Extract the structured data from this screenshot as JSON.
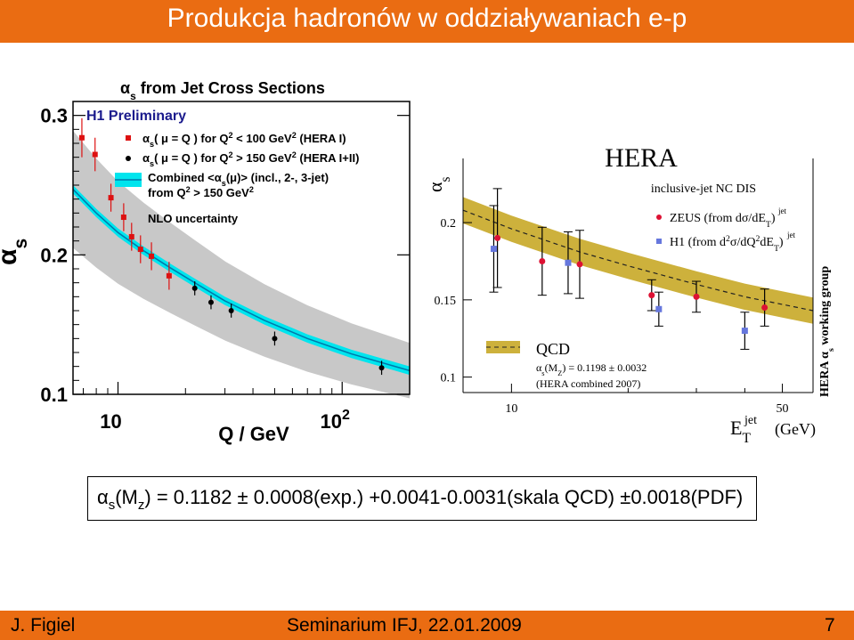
{
  "slide": {
    "title": "Produkcja hadronów w oddziaływaniach e-p",
    "footer_author": "J. Figiel",
    "footer_event": "Seminarium IFJ, 22.01.2009",
    "footer_page": "7"
  },
  "formula": {
    "alpha": "α",
    "sub_s": "s",
    "open": "(M",
    "sub_z": "z",
    "rest": ") = 0.1182 ± 0.0008(exp.)  +0.0041-0.0031(skala QCD) ±0.0018(PDF)"
  },
  "chart_data": [
    {
      "type": "scatter",
      "title": "α s from Jet Cross Sections",
      "title_alpha": "α",
      "title_sub": "s",
      "title_rest": "from Jet Cross Sections",
      "collaboration": "H1 Preliminary",
      "xlabel": "Q / GeV",
      "ylabel_alpha": "α",
      "ylabel_sub": "s",
      "xscale": "log",
      "xlim": [
        6.3,
        200
      ],
      "ylim": [
        0.1,
        0.31
      ],
      "xticks": [
        {
          "label": "10",
          "value": 10
        },
        {
          "label": "10",
          "sup": "2",
          "value": 100
        }
      ],
      "yticks": [
        {
          "label": "0.1",
          "value": 0.1
        },
        {
          "label": "0.2",
          "value": 0.2
        },
        {
          "label": "0.3",
          "value": 0.3
        }
      ],
      "legend": [
        {
          "marker": "red-square",
          "parts": [
            "α",
            "s",
            "( μ = Q ) for Q",
            "2",
            " < 100 GeV",
            "2",
            " (HERA I)"
          ]
        },
        {
          "marker": "black-dot",
          "parts": [
            "α",
            "s",
            "( μ = Q ) for Q",
            "2",
            " > 150 GeV",
            "2",
            " (HERA I+II)"
          ]
        },
        {
          "marker": "cyan-band",
          "line1": [
            "Combined <α",
            "s",
            "(μ)> (incl., 2-, 3-jet)"
          ],
          "line2": [
            "from Q",
            "2",
            " > 150 GeV",
            "2"
          ]
        },
        {
          "marker": "grey-band",
          "parts": [
            "NLO uncertainty"
          ]
        }
      ],
      "colors": {
        "hera1": "#dd1111",
        "hera2": "#000000",
        "combined_band": "#00e5ee",
        "combined_line": "#0077aa",
        "nlo_band": "#c8c8c8"
      },
      "series": [
        {
          "name": "HERA I",
          "points": [
            {
              "x": 6.9,
              "y": 0.284,
              "err": 0.014
            },
            {
              "x": 7.9,
              "y": 0.272,
              "err": 0.012
            },
            {
              "x": 9.3,
              "y": 0.241,
              "err": 0.01
            },
            {
              "x": 10.6,
              "y": 0.227,
              "err": 0.01
            },
            {
              "x": 11.5,
              "y": 0.213,
              "err": 0.01
            },
            {
              "x": 12.6,
              "y": 0.204,
              "err": 0.01
            },
            {
              "x": 14.1,
              "y": 0.199,
              "err": 0.01
            },
            {
              "x": 16.9,
              "y": 0.185,
              "err": 0.01
            }
          ]
        },
        {
          "name": "HERA I+II",
          "points": [
            {
              "x": 22.0,
              "y": 0.176,
              "err": 0.005
            },
            {
              "x": 26.0,
              "y": 0.166,
              "err": 0.005
            },
            {
              "x": 32.0,
              "y": 0.16,
              "err": 0.005
            },
            {
              "x": 50.0,
              "y": 0.14,
              "err": 0.005
            },
            {
              "x": 150.0,
              "y": 0.119,
              "err": 0.005
            }
          ]
        }
      ],
      "combined_curve": {
        "x": [
          6.3,
          8,
          10,
          13,
          17,
          22,
          30,
          45,
          70,
          110,
          200
        ],
        "y": [
          0.247,
          0.23,
          0.216,
          0.203,
          0.191,
          0.18,
          0.167,
          0.153,
          0.14,
          0.129,
          0.117
        ]
      }
    },
    {
      "type": "scatter",
      "title": "HERA",
      "subtitle": "inclusive-jet NC DIS",
      "xscale": "log",
      "xlim": [
        7.5,
        60
      ],
      "ylim": [
        0.09,
        0.23
      ],
      "xlabel_E": "E",
      "xlabel_sup": "jet",
      "xlabel_sub": "T",
      "xlabel_unit": "(GeV)",
      "ylabel_alpha": "α",
      "ylabel_sub": "s",
      "side_label": "HERA α s working group",
      "side_alpha": "α",
      "side_sub": "s",
      "side_pre": "HERA",
      "side_post": "working group",
      "xticks": [
        {
          "label": "10",
          "value": 10
        },
        {
          "label": "50",
          "value": 50
        }
      ],
      "yticks": [
        {
          "label": "0.1",
          "value": 0.1
        },
        {
          "label": "0.15",
          "value": 0.15
        },
        {
          "label": "0.2",
          "value": 0.2
        }
      ],
      "legend": [
        {
          "marker": "red-dot",
          "text": "ZEUS",
          "detail": "(from dσ/dE",
          "sup": "jet",
          "sub": "T",
          "close": ")"
        },
        {
          "marker": "blue-square",
          "text": "H1",
          "detail": "(from d",
          "sup2": "2",
          "mid": "σ/dQ",
          "sup3": "2",
          "end": "dE",
          "sup": "jet",
          "sub": "T",
          "close": ")"
        }
      ],
      "qcd_legend": {
        "label": "QCD",
        "value_line_alpha": "α",
        "value_line_sub": "s",
        "value_line_open": "(M",
        "value_line_subz": "Z",
        "value_line_rest": ") = 0.1198 ± 0.0032",
        "note": "(HERA combined 2007)"
      },
      "colors": {
        "zeus": "#dd1133",
        "h1": "#6677dd",
        "band": "#cdb13c",
        "line": "#222222"
      },
      "series": [
        {
          "name": "ZEUS",
          "points": [
            {
              "x": 9.2,
              "y": 0.19,
              "err": 0.032
            },
            {
              "x": 12.0,
              "y": 0.175,
              "err": 0.022
            },
            {
              "x": 15.0,
              "y": 0.173,
              "err": 0.022
            },
            {
              "x": 23.0,
              "y": 0.153,
              "err": 0.01
            },
            {
              "x": 30.0,
              "y": 0.152,
              "err": 0.01
            },
            {
              "x": 45.0,
              "y": 0.145,
              "err": 0.012
            }
          ]
        },
        {
          "name": "H1",
          "points": [
            {
              "x": 9.0,
              "y": 0.183,
              "err": 0.028
            },
            {
              "x": 14.0,
              "y": 0.174,
              "err": 0.02
            },
            {
              "x": 24.0,
              "y": 0.144,
              "err": 0.011
            },
            {
              "x": 40.0,
              "y": 0.13,
              "err": 0.012
            }
          ]
        }
      ],
      "qcd_curve": {
        "x": [
          7.5,
          10,
          15,
          20,
          30,
          40,
          60
        ],
        "y": [
          0.208,
          0.196,
          0.181,
          0.172,
          0.16,
          0.152,
          0.143
        ]
      }
    }
  ]
}
